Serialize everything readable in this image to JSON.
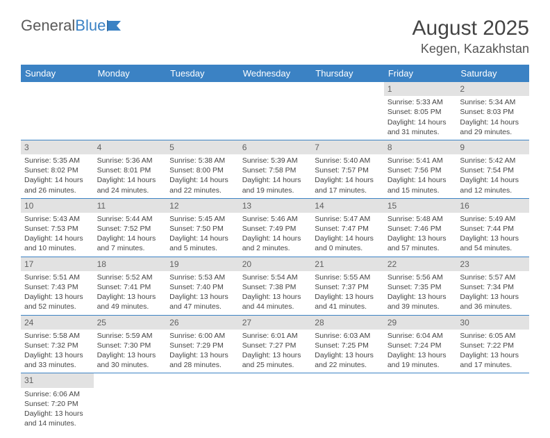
{
  "logo": {
    "text1": "General",
    "text2": "Blue"
  },
  "title": "August 2025",
  "location": "Kegen, Kazakhstan",
  "colors": {
    "header_bg": "#3b82c4",
    "header_text": "#ffffff",
    "daynum_bg": "#e2e2e2",
    "daynum_text": "#606060",
    "body_text": "#444444",
    "rule": "#3b82c4"
  },
  "weekdays": [
    "Sunday",
    "Monday",
    "Tuesday",
    "Wednesday",
    "Thursday",
    "Friday",
    "Saturday"
  ],
  "weeks": [
    [
      null,
      null,
      null,
      null,
      null,
      {
        "n": "1",
        "sr": "Sunrise: 5:33 AM",
        "ss": "Sunset: 8:05 PM",
        "dl": "Daylight: 14 hours and 31 minutes."
      },
      {
        "n": "2",
        "sr": "Sunrise: 5:34 AM",
        "ss": "Sunset: 8:03 PM",
        "dl": "Daylight: 14 hours and 29 minutes."
      }
    ],
    [
      {
        "n": "3",
        "sr": "Sunrise: 5:35 AM",
        "ss": "Sunset: 8:02 PM",
        "dl": "Daylight: 14 hours and 26 minutes."
      },
      {
        "n": "4",
        "sr": "Sunrise: 5:36 AM",
        "ss": "Sunset: 8:01 PM",
        "dl": "Daylight: 14 hours and 24 minutes."
      },
      {
        "n": "5",
        "sr": "Sunrise: 5:38 AM",
        "ss": "Sunset: 8:00 PM",
        "dl": "Daylight: 14 hours and 22 minutes."
      },
      {
        "n": "6",
        "sr": "Sunrise: 5:39 AM",
        "ss": "Sunset: 7:58 PM",
        "dl": "Daylight: 14 hours and 19 minutes."
      },
      {
        "n": "7",
        "sr": "Sunrise: 5:40 AM",
        "ss": "Sunset: 7:57 PM",
        "dl": "Daylight: 14 hours and 17 minutes."
      },
      {
        "n": "8",
        "sr": "Sunrise: 5:41 AM",
        "ss": "Sunset: 7:56 PM",
        "dl": "Daylight: 14 hours and 15 minutes."
      },
      {
        "n": "9",
        "sr": "Sunrise: 5:42 AM",
        "ss": "Sunset: 7:54 PM",
        "dl": "Daylight: 14 hours and 12 minutes."
      }
    ],
    [
      {
        "n": "10",
        "sr": "Sunrise: 5:43 AM",
        "ss": "Sunset: 7:53 PM",
        "dl": "Daylight: 14 hours and 10 minutes."
      },
      {
        "n": "11",
        "sr": "Sunrise: 5:44 AM",
        "ss": "Sunset: 7:52 PM",
        "dl": "Daylight: 14 hours and 7 minutes."
      },
      {
        "n": "12",
        "sr": "Sunrise: 5:45 AM",
        "ss": "Sunset: 7:50 PM",
        "dl": "Daylight: 14 hours and 5 minutes."
      },
      {
        "n": "13",
        "sr": "Sunrise: 5:46 AM",
        "ss": "Sunset: 7:49 PM",
        "dl": "Daylight: 14 hours and 2 minutes."
      },
      {
        "n": "14",
        "sr": "Sunrise: 5:47 AM",
        "ss": "Sunset: 7:47 PM",
        "dl": "Daylight: 14 hours and 0 minutes."
      },
      {
        "n": "15",
        "sr": "Sunrise: 5:48 AM",
        "ss": "Sunset: 7:46 PM",
        "dl": "Daylight: 13 hours and 57 minutes."
      },
      {
        "n": "16",
        "sr": "Sunrise: 5:49 AM",
        "ss": "Sunset: 7:44 PM",
        "dl": "Daylight: 13 hours and 54 minutes."
      }
    ],
    [
      {
        "n": "17",
        "sr": "Sunrise: 5:51 AM",
        "ss": "Sunset: 7:43 PM",
        "dl": "Daylight: 13 hours and 52 minutes."
      },
      {
        "n": "18",
        "sr": "Sunrise: 5:52 AM",
        "ss": "Sunset: 7:41 PM",
        "dl": "Daylight: 13 hours and 49 minutes."
      },
      {
        "n": "19",
        "sr": "Sunrise: 5:53 AM",
        "ss": "Sunset: 7:40 PM",
        "dl": "Daylight: 13 hours and 47 minutes."
      },
      {
        "n": "20",
        "sr": "Sunrise: 5:54 AM",
        "ss": "Sunset: 7:38 PM",
        "dl": "Daylight: 13 hours and 44 minutes."
      },
      {
        "n": "21",
        "sr": "Sunrise: 5:55 AM",
        "ss": "Sunset: 7:37 PM",
        "dl": "Daylight: 13 hours and 41 minutes."
      },
      {
        "n": "22",
        "sr": "Sunrise: 5:56 AM",
        "ss": "Sunset: 7:35 PM",
        "dl": "Daylight: 13 hours and 39 minutes."
      },
      {
        "n": "23",
        "sr": "Sunrise: 5:57 AM",
        "ss": "Sunset: 7:34 PM",
        "dl": "Daylight: 13 hours and 36 minutes."
      }
    ],
    [
      {
        "n": "24",
        "sr": "Sunrise: 5:58 AM",
        "ss": "Sunset: 7:32 PM",
        "dl": "Daylight: 13 hours and 33 minutes."
      },
      {
        "n": "25",
        "sr": "Sunrise: 5:59 AM",
        "ss": "Sunset: 7:30 PM",
        "dl": "Daylight: 13 hours and 30 minutes."
      },
      {
        "n": "26",
        "sr": "Sunrise: 6:00 AM",
        "ss": "Sunset: 7:29 PM",
        "dl": "Daylight: 13 hours and 28 minutes."
      },
      {
        "n": "27",
        "sr": "Sunrise: 6:01 AM",
        "ss": "Sunset: 7:27 PM",
        "dl": "Daylight: 13 hours and 25 minutes."
      },
      {
        "n": "28",
        "sr": "Sunrise: 6:03 AM",
        "ss": "Sunset: 7:25 PM",
        "dl": "Daylight: 13 hours and 22 minutes."
      },
      {
        "n": "29",
        "sr": "Sunrise: 6:04 AM",
        "ss": "Sunset: 7:24 PM",
        "dl": "Daylight: 13 hours and 19 minutes."
      },
      {
        "n": "30",
        "sr": "Sunrise: 6:05 AM",
        "ss": "Sunset: 7:22 PM",
        "dl": "Daylight: 13 hours and 17 minutes."
      }
    ],
    [
      {
        "n": "31",
        "sr": "Sunrise: 6:06 AM",
        "ss": "Sunset: 7:20 PM",
        "dl": "Daylight: 13 hours and 14 minutes."
      },
      null,
      null,
      null,
      null,
      null,
      null
    ]
  ]
}
